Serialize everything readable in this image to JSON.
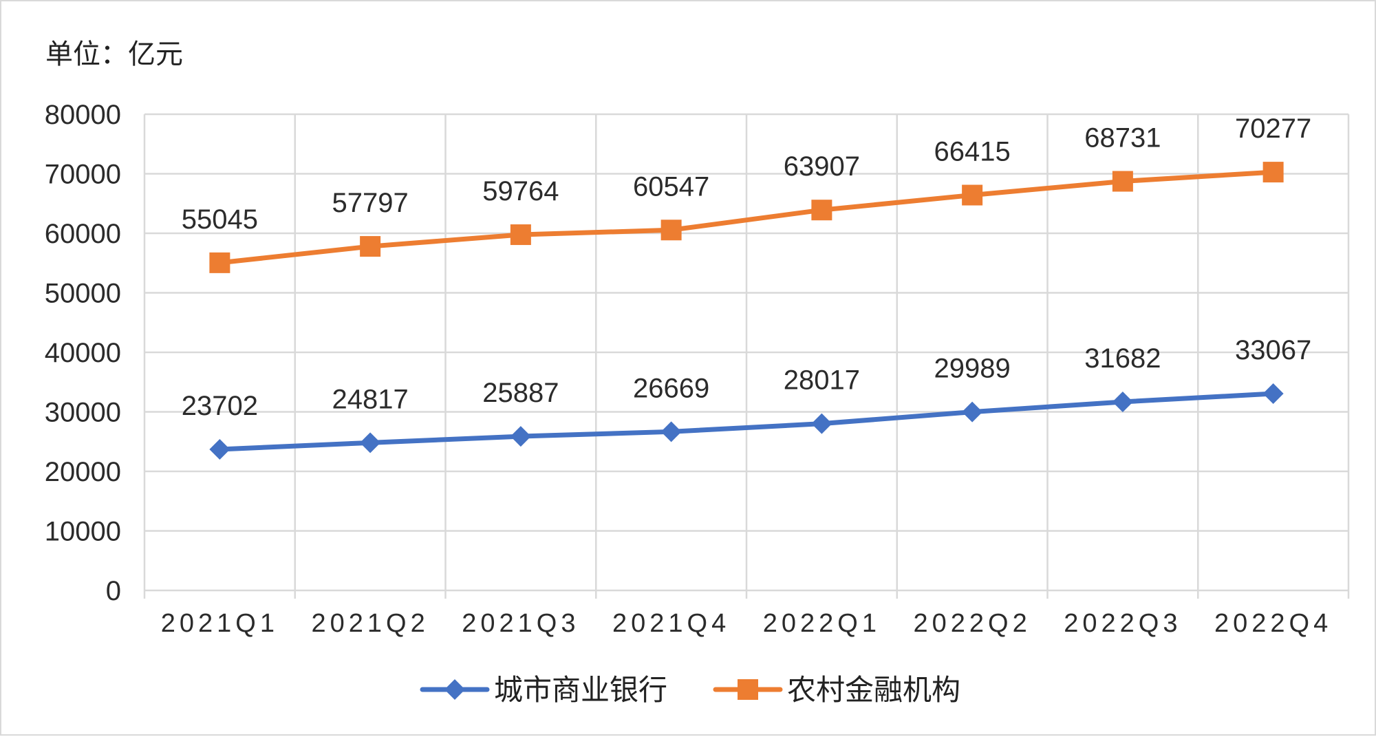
{
  "unit_label": "单位：亿元",
  "chart_data": {
    "type": "line",
    "categories": [
      "2021Q1",
      "2021Q2",
      "2021Q3",
      "2021Q4",
      "2022Q1",
      "2022Q2",
      "2022Q3",
      "2022Q4"
    ],
    "ylim": [
      0,
      80000
    ],
    "yticks": [
      0,
      10000,
      20000,
      30000,
      40000,
      50000,
      60000,
      70000,
      80000
    ],
    "grid": true,
    "legend_position": "bottom",
    "series": [
      {
        "name": "城市商业银行",
        "color": "#4472C4",
        "marker": "diamond",
        "values": [
          23702,
          24817,
          25887,
          26669,
          28017,
          29989,
          31682,
          33067
        ]
      },
      {
        "name": "农村金融机构",
        "color": "#ED7D31",
        "marker": "square",
        "values": [
          55045,
          57797,
          59764,
          60547,
          63907,
          66415,
          68731,
          70277
        ]
      }
    ]
  }
}
